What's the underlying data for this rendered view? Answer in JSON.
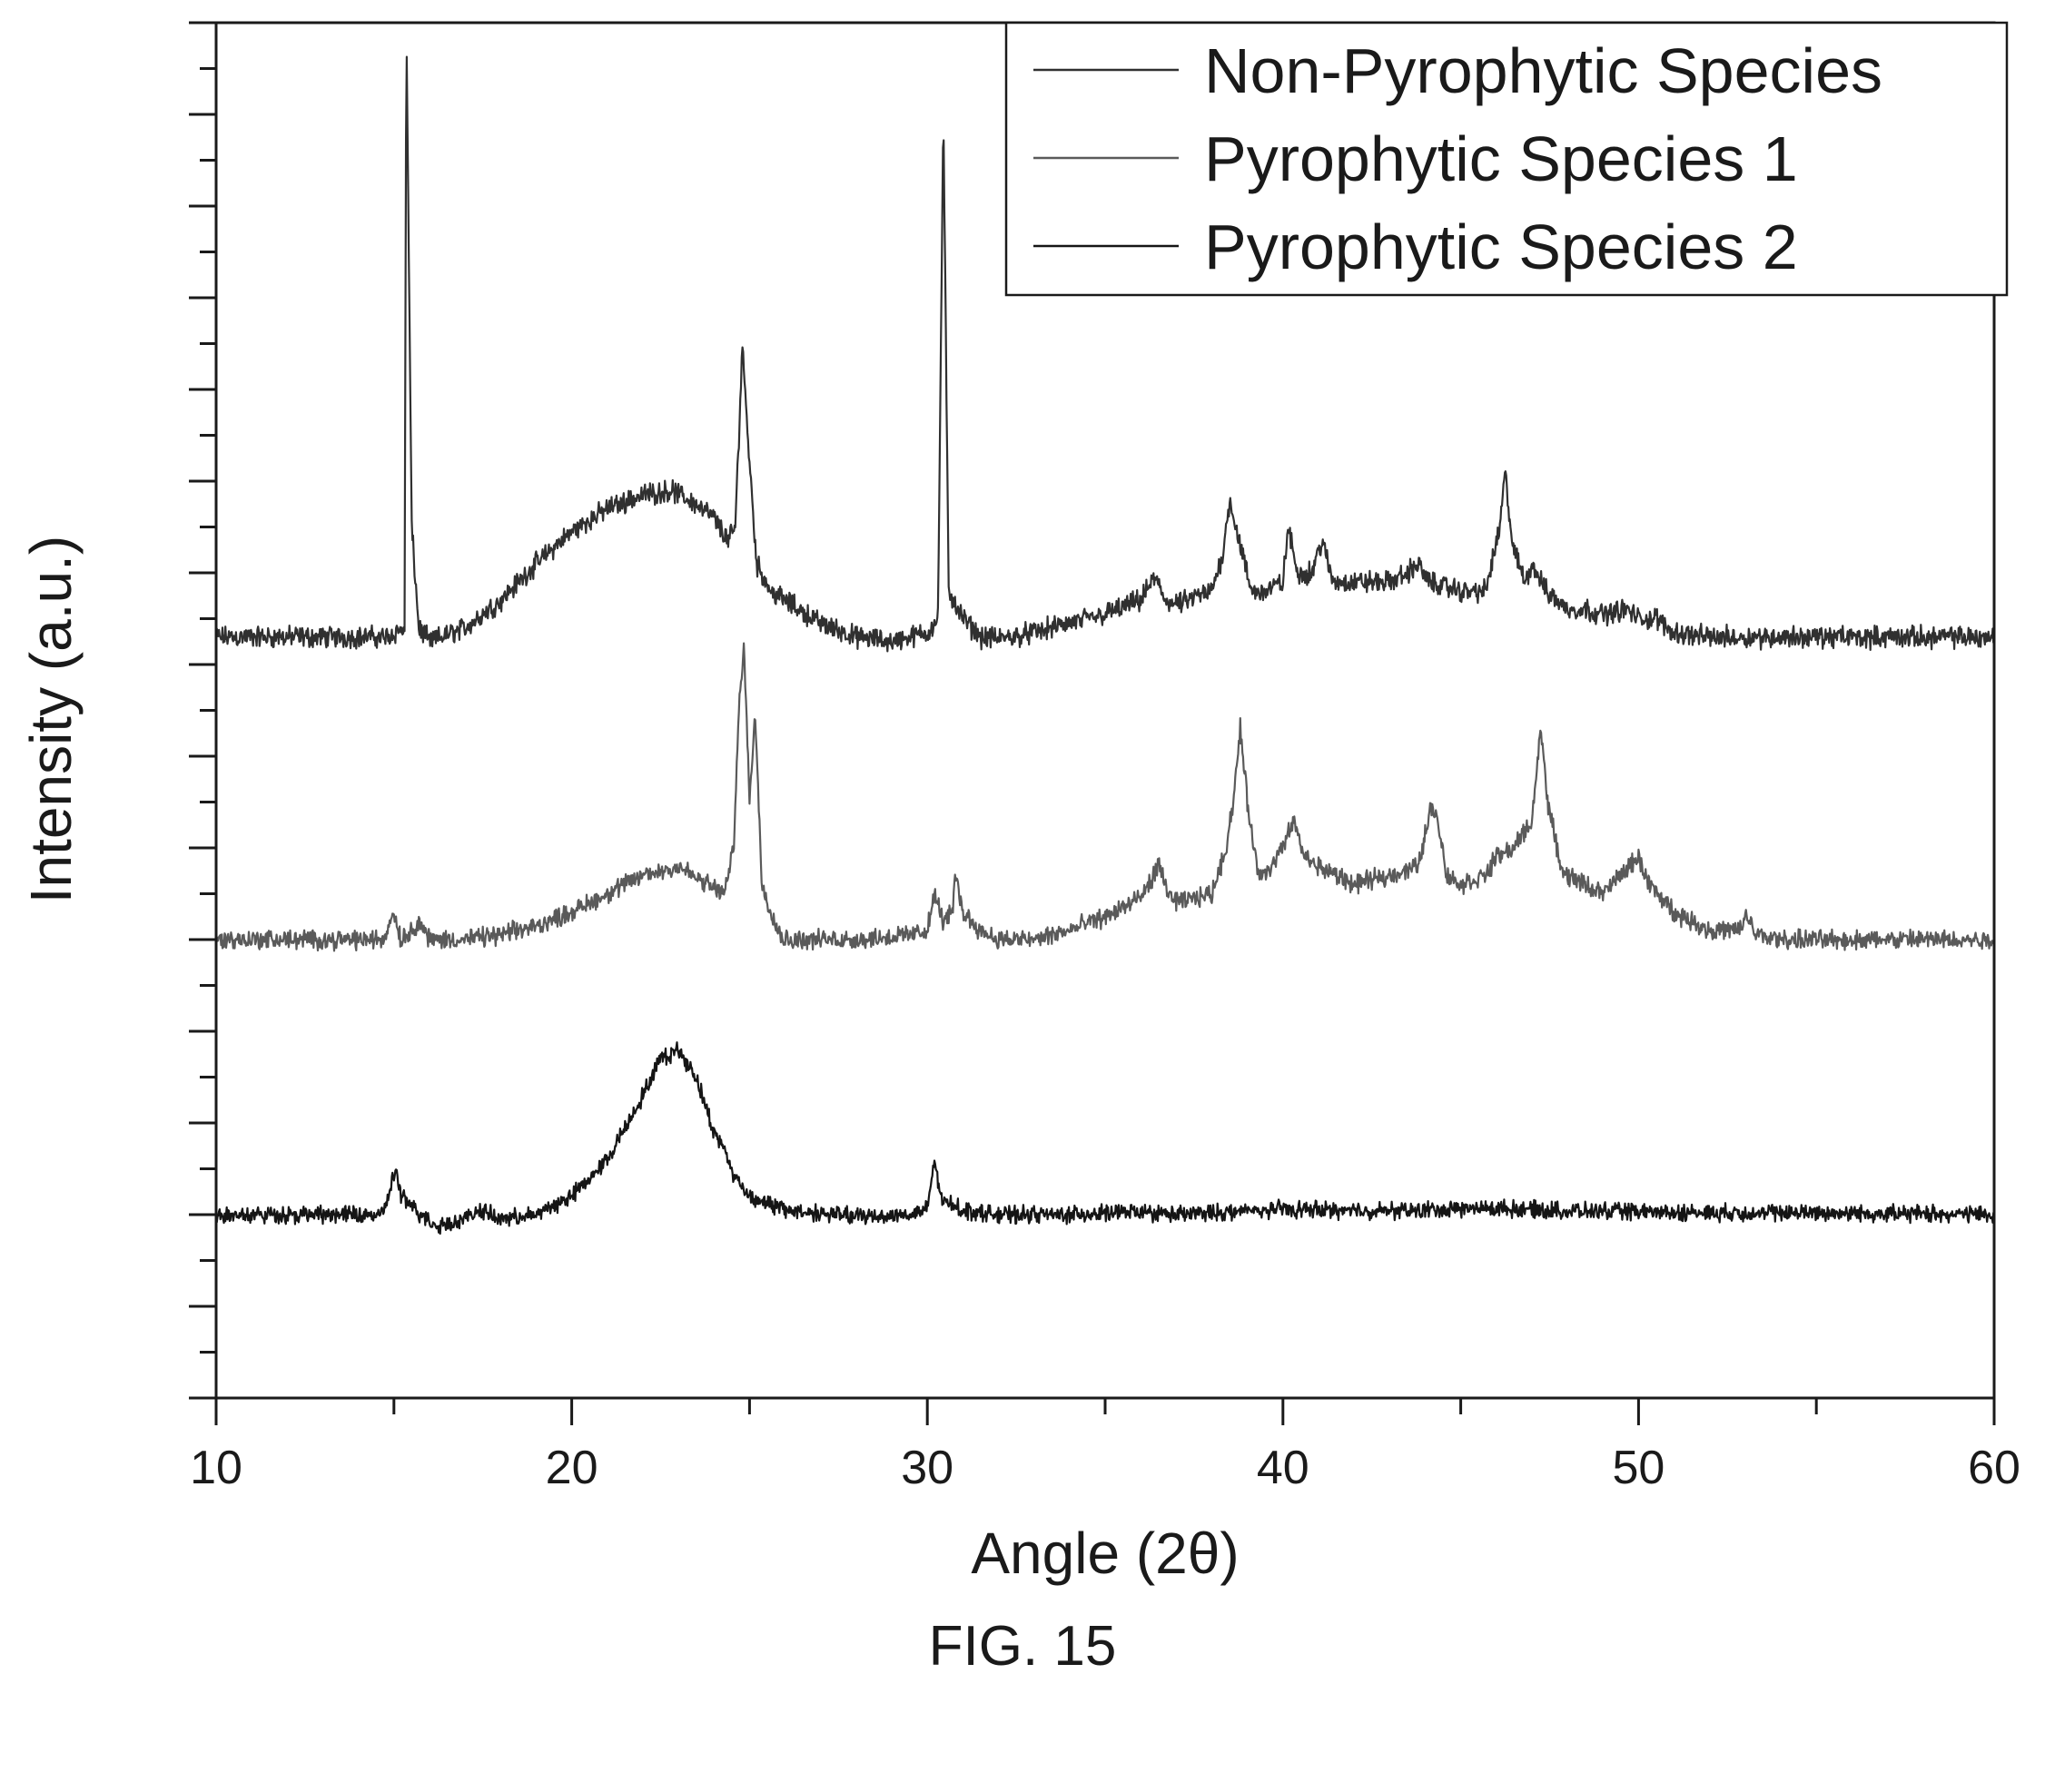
{
  "chart_data": {
    "type": "line",
    "title": "",
    "xlabel": "Angle (2θ)",
    "ylabel": "Intensity (a.u.)",
    "xlim": [
      10,
      60
    ],
    "ylim": [
      0,
      150
    ],
    "x_ticks": [
      10,
      20,
      30,
      40,
      50,
      60
    ],
    "x_tick_labels": [
      "10",
      "20",
      "30",
      "40",
      "50",
      "60"
    ],
    "y_ticks_labeled": false,
    "grid": false,
    "legend_position": "top-right",
    "series": [
      {
        "name": "Non-Pyrophytic Species",
        "color": "#303030",
        "baseline": 83,
        "noise": 0.9,
        "points": [
          [
            10,
            83
          ],
          [
            14.8,
            83
          ],
          [
            15.3,
            84
          ],
          [
            15.35,
            150
          ],
          [
            15.5,
            95
          ],
          [
            15.7,
            84
          ],
          [
            16,
            82.5
          ],
          [
            17,
            84
          ],
          [
            18,
            87
          ],
          [
            19,
            91
          ],
          [
            20,
            94.5
          ],
          [
            21,
            97
          ],
          [
            22,
            98.5
          ],
          [
            22.8,
            99
          ],
          [
            23.5,
            97.5
          ],
          [
            24,
            96
          ],
          [
            24.4,
            93.5
          ],
          [
            24.6,
            95
          ],
          [
            24.8,
            115
          ],
          [
            24.95,
            105
          ],
          [
            25.2,
            91
          ],
          [
            25.6,
            88
          ],
          [
            26,
            87
          ],
          [
            27,
            84.5
          ],
          [
            28,
            83
          ],
          [
            29,
            82.5
          ],
          [
            30,
            83.5
          ],
          [
            30.3,
            85
          ],
          [
            30.45,
            140
          ],
          [
            30.6,
            88
          ],
          [
            31,
            85
          ],
          [
            31.5,
            83
          ],
          [
            32,
            82.8
          ],
          [
            33,
            83.5
          ],
          [
            34,
            84.5
          ],
          [
            35,
            85.5
          ],
          [
            36,
            87
          ],
          [
            36.4,
            89.5
          ],
          [
            36.7,
            87
          ],
          [
            37,
            86.5
          ],
          [
            38,
            88
          ],
          [
            38.3,
            92
          ],
          [
            38.5,
            98
          ],
          [
            38.8,
            93
          ],
          [
            39.1,
            88
          ],
          [
            39.5,
            88
          ],
          [
            40,
            89
          ],
          [
            40.15,
            95
          ],
          [
            40.4,
            90
          ],
          [
            40.8,
            90
          ],
          [
            41.1,
            93.5
          ],
          [
            41.4,
            89
          ],
          [
            42,
            89
          ],
          [
            43,
            89
          ],
          [
            43.5,
            90
          ],
          [
            43.8,
            91
          ],
          [
            44.1,
            89
          ],
          [
            45,
            88
          ],
          [
            45.7,
            88
          ],
          [
            46.1,
            95
          ],
          [
            46.25,
            101
          ],
          [
            46.45,
            93
          ],
          [
            46.8,
            89
          ],
          [
            47,
            91
          ],
          [
            47.4,
            88
          ],
          [
            48,
            86
          ],
          [
            48.5,
            86
          ],
          [
            49,
            85.5
          ],
          [
            49.7,
            86
          ],
          [
            50,
            85
          ],
          [
            50.5,
            85
          ],
          [
            51,
            83.5
          ],
          [
            52,
            83
          ],
          [
            54,
            83
          ],
          [
            56,
            83
          ],
          [
            58,
            83
          ],
          [
            60,
            83
          ]
        ]
      },
      {
        "name": "Pyrophytic Species 1",
        "color": "#5a5a5a",
        "baseline": 50,
        "noise": 0.8,
        "points": [
          [
            10,
            50
          ],
          [
            14.7,
            50
          ],
          [
            15.0,
            53
          ],
          [
            15.2,
            50
          ],
          [
            15.5,
            51
          ],
          [
            15.7,
            52
          ],
          [
            16,
            50
          ],
          [
            17,
            50
          ],
          [
            18,
            50.5
          ],
          [
            19,
            51.5
          ],
          [
            20,
            53
          ],
          [
            21,
            55
          ],
          [
            22,
            57
          ],
          [
            23,
            58
          ],
          [
            23.8,
            56
          ],
          [
            24.3,
            55
          ],
          [
            24.55,
            60
          ],
          [
            24.7,
            75
          ],
          [
            24.85,
            82
          ],
          [
            25,
            65
          ],
          [
            25.15,
            75
          ],
          [
            25.35,
            56
          ],
          [
            25.8,
            51
          ],
          [
            26,
            50
          ],
          [
            28,
            50
          ],
          [
            29.5,
            50.5
          ],
          [
            30,
            51
          ],
          [
            30.2,
            55
          ],
          [
            30.45,
            52
          ],
          [
            30.7,
            53
          ],
          [
            30.8,
            57
          ],
          [
            31,
            53
          ],
          [
            31.5,
            51
          ],
          [
            32,
            50
          ],
          [
            33,
            50
          ],
          [
            34,
            51
          ],
          [
            35,
            52.5
          ],
          [
            36,
            54.5
          ],
          [
            36.5,
            58
          ],
          [
            36.8,
            55
          ],
          [
            37,
            54
          ],
          [
            38,
            55
          ],
          [
            38.4,
            60
          ],
          [
            38.6,
            65
          ],
          [
            38.8,
            73
          ],
          [
            39,
            65
          ],
          [
            39.3,
            57
          ],
          [
            39.7,
            58
          ],
          [
            40,
            60
          ],
          [
            40.3,
            63
          ],
          [
            40.6,
            59
          ],
          [
            41,
            58
          ],
          [
            42,
            56
          ],
          [
            43,
            57
          ],
          [
            43.8,
            58
          ],
          [
            44.2,
            65
          ],
          [
            44.4,
            62
          ],
          [
            44.6,
            57
          ],
          [
            45,
            56
          ],
          [
            45.7,
            57
          ],
          [
            46,
            59
          ],
          [
            46.5,
            60
          ],
          [
            47,
            63
          ],
          [
            47.25,
            73
          ],
          [
            47.45,
            65
          ],
          [
            47.8,
            58
          ],
          [
            48,
            57
          ],
          [
            48.5,
            56
          ],
          [
            49,
            55
          ],
          [
            49.5,
            57
          ],
          [
            50,
            59
          ],
          [
            50.3,
            56
          ],
          [
            51,
            53
          ],
          [
            52,
            51
          ],
          [
            52.9,
            51
          ],
          [
            53,
            53
          ],
          [
            53.3,
            50.5
          ],
          [
            54,
            50
          ],
          [
            56,
            50
          ],
          [
            58,
            50
          ],
          [
            60,
            50
          ]
        ]
      },
      {
        "name": "Pyrophytic Species 2",
        "color": "#151515",
        "baseline": 20,
        "noise": 0.7,
        "points": [
          [
            10,
            20
          ],
          [
            14.7,
            20
          ],
          [
            15.05,
            25
          ],
          [
            15.2,
            22
          ],
          [
            15.6,
            20.5
          ],
          [
            16.2,
            18.8
          ],
          [
            17,
            19.5
          ],
          [
            17.4,
            20.5
          ],
          [
            18,
            19.5
          ],
          [
            19,
            20
          ],
          [
            20,
            22
          ],
          [
            21,
            26
          ],
          [
            22,
            33
          ],
          [
            22.5,
            37
          ],
          [
            23,
            38
          ],
          [
            23.5,
            35
          ],
          [
            24,
            29
          ],
          [
            24.3,
            27
          ],
          [
            24.6,
            24
          ],
          [
            25,
            22
          ],
          [
            26,
            20.5
          ],
          [
            28,
            19.8
          ],
          [
            29.5,
            20
          ],
          [
            30,
            20.5
          ],
          [
            30.2,
            26
          ],
          [
            30.4,
            21.5
          ],
          [
            30.8,
            21
          ],
          [
            31,
            20.5
          ],
          [
            32,
            20
          ],
          [
            34,
            20
          ],
          [
            36,
            20.3
          ],
          [
            37,
            20
          ],
          [
            40,
            20.6
          ],
          [
            43,
            20.4
          ],
          [
            46,
            20.7
          ],
          [
            48,
            20.4
          ],
          [
            50,
            20.3
          ],
          [
            52,
            20.2
          ],
          [
            55,
            20.2
          ],
          [
            58,
            20.1
          ],
          [
            60,
            20
          ]
        ]
      }
    ]
  },
  "figure": {
    "caption": "FIG. 15"
  }
}
